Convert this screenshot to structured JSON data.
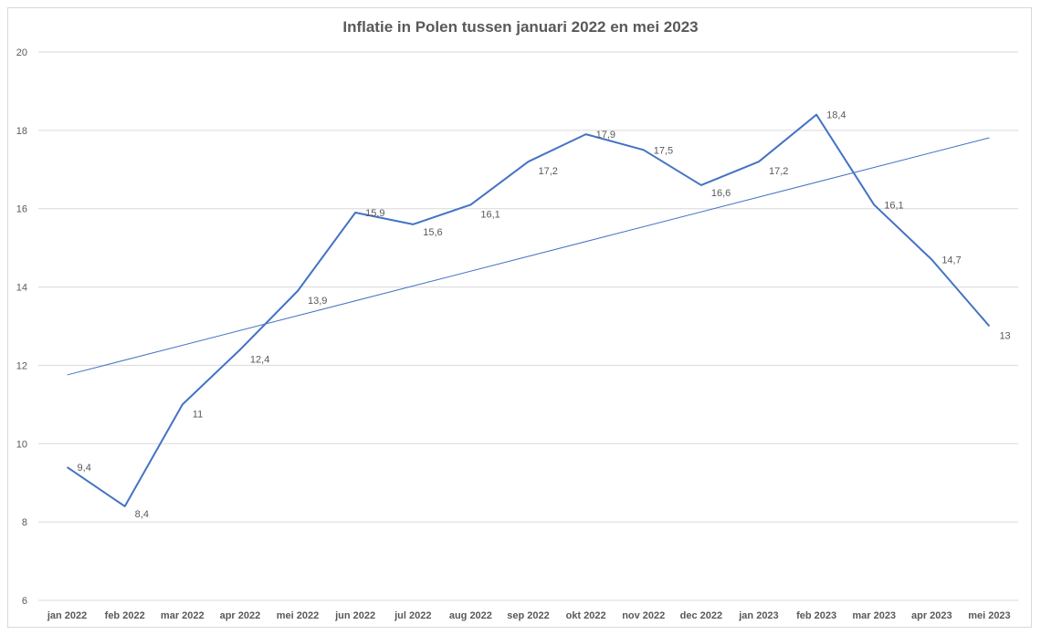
{
  "chart_data": {
    "type": "line",
    "title": "Inflatie in Polen tussen januari 2022 en mei 2023",
    "xlabel": "",
    "ylabel": "",
    "categories": [
      "jan 2022",
      "feb 2022",
      "mar 2022",
      "apr 2022",
      "mei 2022",
      "jun 2022",
      "jul 2022",
      "aug 2022",
      "sep 2022",
      "okt 2022",
      "nov 2022",
      "dec 2022",
      "jan 2023",
      "feb 2023",
      "mar 2023",
      "apr 2023",
      "mei 2023"
    ],
    "series": [
      {
        "values": [
          9.4,
          8.4,
          11,
          12.4,
          13.9,
          15.9,
          15.6,
          16.1,
          17.2,
          17.9,
          17.5,
          16.6,
          17.2,
          18.4,
          16.1,
          14.7,
          13
        ],
        "labels": [
          "9,4",
          "8,4",
          "11",
          "12,4",
          "13,9",
          "15,9",
          "15,6",
          "16,1",
          "17,2",
          "17,9",
          "17,5",
          "16,6",
          "17,2",
          "18,4",
          "16,1",
          "14,7",
          "13"
        ],
        "color": "#4472c4"
      }
    ],
    "trendline": {
      "type": "linear",
      "color": "#4472c4"
    },
    "ylim": [
      6,
      20
    ],
    "yticks": [
      6,
      8,
      10,
      12,
      14,
      16,
      18,
      20
    ],
    "ytick_labels": [
      "6",
      "8",
      "10",
      "12",
      "14",
      "16",
      "18",
      "20"
    ],
    "grid": true,
    "gridColor": "#d9d9d9",
    "legend": "none"
  }
}
